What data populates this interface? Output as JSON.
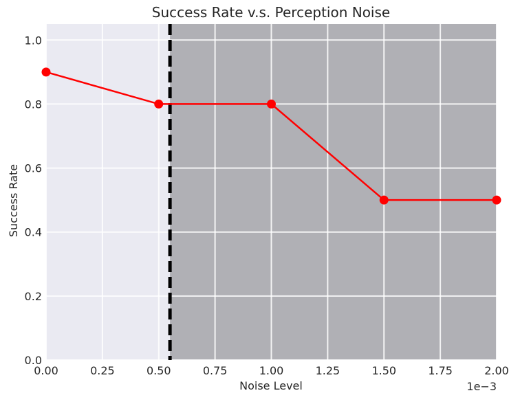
{
  "chart_data": {
    "type": "line",
    "title": "Success Rate v.s. Perception Noise",
    "xlabel": "Noise Level",
    "ylabel": "Success Rate",
    "x_offset_label": "1e−3",
    "xlim": [
      0.0,
      2.0
    ],
    "ylim": [
      0.0,
      1.05
    ],
    "x_ticks": [
      "0.00",
      "0.25",
      "0.50",
      "0.75",
      "1.00",
      "1.25",
      "1.50",
      "1.75",
      "2.00"
    ],
    "y_ticks": [
      "0.0",
      "0.2",
      "0.4",
      "0.6",
      "0.8",
      "1.0"
    ],
    "x": [
      0.0,
      0.5,
      1.0,
      1.5,
      2.0
    ],
    "y": [
      0.9,
      0.8,
      0.8,
      0.5,
      0.5
    ],
    "threshold_x": 0.55,
    "grid": true,
    "colors": {
      "series": "#ff0000",
      "threshold": "#000000",
      "shaded_region": "#b0b0b5",
      "plot_background": "#eaeaf2",
      "grid": "#ffffff"
    }
  }
}
